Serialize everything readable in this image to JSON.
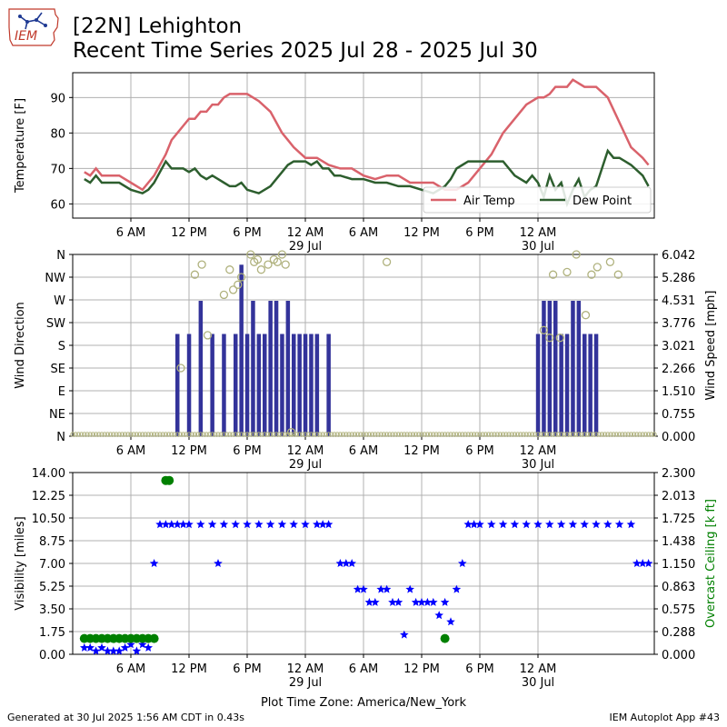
{
  "header": {
    "title_line1": "[22N] Lehighton",
    "title_line2": "Recent Time Series 2025 Jul 28 - 2025 Jul 30",
    "logo_text": "IEM"
  },
  "footer": {
    "left": "Generated at 30 Jul 2025 1:56 AM CDT in 0.43s",
    "right": "IEM Autoplot App #43"
  },
  "colors": {
    "temp": "#d9626b",
    "dew": "#2d5e2e",
    "bars": "#33339a",
    "wind_dir": "#b0b27e",
    "vis": "#0000ff",
    "ceiling": "#008000",
    "grid": "#b0b0b0"
  },
  "chart_data": [
    {
      "type": "line",
      "ylabel": "Temperature [F]",
      "xlabel": "",
      "ylim": [
        56,
        97
      ],
      "yticks": [
        "60",
        "70",
        "80",
        "90"
      ],
      "xticks": [
        "6 AM",
        "12 PM",
        "6 PM",
        "12 AM\n29 Jul",
        "6 AM",
        "12 PM",
        "6 PM",
        "12 AM\n30 Jul"
      ],
      "grid": true,
      "legend": "lower-right",
      "series": [
        {
          "name": "Air Temp",
          "x": [
            1.0,
            1.5,
            2.0,
            2.5,
            3.0,
            3.5,
            4.0,
            5.0,
            6.0,
            6.5,
            7.0,
            7.5,
            8.0,
            8.5,
            9.0,
            9.5,
            10.0,
            10.5,
            11.0,
            11.5,
            12.0,
            12.5,
            13.0,
            13.5,
            14.0,
            15.0,
            16.0,
            17.0,
            18.0,
            18.5,
            19.0,
            20.0,
            21.0,
            22.0,
            23.0,
            24.0,
            25.0,
            26.0,
            27.0,
            28.0,
            29.0,
            30.0,
            31.0,
            32.0,
            33.0,
            34.0,
            35.0,
            36.0,
            36.5,
            37.0,
            38.0,
            39.0,
            40.0,
            40.5,
            41.0,
            41.5,
            42.0,
            42.5,
            43.0,
            44.0,
            45.0,
            46.0,
            47.0,
            48.0,
            49.0,
            49.5
          ],
          "values": [
            69,
            68,
            70,
            68,
            68,
            68,
            68,
            66,
            64,
            66,
            68,
            71,
            74,
            78,
            80,
            82,
            84,
            84,
            86,
            86,
            88,
            88,
            90,
            91,
            91,
            91,
            89,
            86,
            80,
            78,
            76,
            73,
            73,
            71,
            70,
            70,
            68,
            67,
            68,
            68,
            66,
            66,
            66,
            64,
            64,
            66,
            70,
            74,
            77,
            80,
            84,
            88,
            90,
            90,
            91,
            93,
            93,
            93,
            95,
            93,
            93,
            90,
            83,
            76,
            73,
            71
          ]
        },
        {
          "name": "Dew Point",
          "x": [
            1.0,
            1.5,
            2.0,
            2.5,
            3.0,
            3.5,
            4.0,
            5.0,
            6.0,
            6.5,
            7.0,
            7.5,
            8.0,
            8.5,
            9.0,
            9.5,
            10.0,
            10.5,
            11.0,
            11.5,
            12.0,
            12.5,
            13.0,
            13.5,
            14.0,
            14.5,
            15.0,
            16.0,
            17.0,
            17.5,
            18.0,
            18.5,
            19.0,
            20.0,
            20.5,
            21.0,
            21.5,
            22.0,
            22.5,
            23.0,
            24.0,
            25.0,
            26.0,
            27.0,
            28.0,
            29.0,
            30.0,
            31.0,
            31.5,
            32.0,
            32.5,
            33.0,
            33.5,
            34.0,
            35.0,
            36.0,
            37.0,
            38.0,
            39.0,
            39.5,
            40.0,
            40.5,
            41.0,
            41.5,
            42.0,
            42.5,
            43.0,
            43.5,
            44.0,
            44.5,
            45.0,
            45.5,
            46.0,
            46.5,
            47.0,
            47.5,
            48.0,
            49.0,
            49.5
          ],
          "values": [
            67,
            66,
            68,
            66,
            66,
            66,
            66,
            64,
            63,
            64,
            66,
            69,
            72,
            70,
            70,
            70,
            69,
            70,
            68,
            67,
            68,
            67,
            66,
            65,
            65,
            66,
            64,
            63,
            65,
            67,
            69,
            71,
            72,
            72,
            71,
            72,
            70,
            70,
            68,
            68,
            67,
            67,
            66,
            66,
            65,
            65,
            64,
            63,
            64,
            65,
            67,
            70,
            71,
            72,
            72,
            72,
            72,
            68,
            66,
            68,
            66,
            62,
            68,
            64,
            66,
            60,
            64,
            67,
            62,
            64,
            65,
            70,
            75,
            73,
            73,
            72,
            71,
            68,
            65
          ]
        }
      ]
    },
    {
      "type": "bar",
      "ylabel": "Wind Direction",
      "y2label": "Wind Speed [mph]",
      "ylim": [
        0,
        6.042
      ],
      "yticks_left": [
        "N",
        "NE",
        "E",
        "SE",
        "S",
        "SW",
        "W",
        "NW",
        "N"
      ],
      "yticks_right": [
        "0.000",
        "0.755",
        "1.510",
        "2.266",
        "3.021",
        "3.776",
        "4.531",
        "5.286",
        "6.042"
      ],
      "xticks": [
        "6 AM",
        "12 PM",
        "6 PM",
        "12 AM\n29 Jul",
        "6 AM",
        "12 PM",
        "6 PM",
        "12 AM\n30 Jul"
      ],
      "grid": true,
      "series": [
        {
          "name": "Wind Speed",
          "x": [
            9.0,
            10.0,
            11.0,
            12.0,
            13.0,
            14.0,
            14.5,
            15.0,
            15.5,
            16.0,
            16.5,
            17.0,
            17.5,
            18.0,
            18.5,
            19.0,
            19.5,
            20.0,
            20.5,
            21.0,
            22.0,
            40.0,
            40.5,
            41.0,
            41.5,
            42.0,
            42.5,
            43.0,
            43.5,
            44.0,
            44.5,
            45.0
          ],
          "values": [
            3.4,
            3.4,
            4.5,
            3.4,
            3.4,
            3.4,
            5.7,
            3.4,
            4.5,
            3.4,
            3.4,
            4.5,
            4.5,
            3.4,
            4.5,
            3.4,
            3.4,
            3.4,
            3.4,
            3.4,
            3.4,
            3.4,
            4.5,
            4.5,
            4.5,
            3.4,
            3.4,
            4.5,
            4.5,
            3.4,
            3.4,
            3.4
          ]
        }
      ],
      "wind_direction_deg": [
        [
          9.3,
          135
        ],
        [
          10.5,
          320
        ],
        [
          11.1,
          340
        ],
        [
          11.6,
          200
        ],
        [
          13.0,
          280
        ],
        [
          13.5,
          330
        ],
        [
          13.8,
          290
        ],
        [
          14.2,
          300
        ],
        [
          14.5,
          315
        ],
        [
          15.3,
          360
        ],
        [
          15.6,
          345
        ],
        [
          15.9,
          350
        ],
        [
          16.2,
          330
        ],
        [
          16.8,
          340
        ],
        [
          17.3,
          350
        ],
        [
          17.6,
          345
        ],
        [
          18.0,
          360
        ],
        [
          18.3,
          340
        ],
        [
          18.8,
          8
        ],
        [
          27.0,
          345
        ],
        [
          40.5,
          210
        ],
        [
          41.0,
          195
        ],
        [
          41.3,
          320
        ],
        [
          41.9,
          195
        ],
        [
          42.5,
          325
        ],
        [
          43.3,
          360
        ],
        [
          44.1,
          240
        ],
        [
          44.6,
          320
        ],
        [
          45.1,
          335
        ],
        [
          46.2,
          345
        ],
        [
          46.9,
          320
        ]
      ]
    },
    {
      "type": "scatter",
      "ylabel": "Visibility [miles]",
      "y2label": "Overcast Ceiling [k ft]",
      "xlabel": "Plot Time Zone: America/New_York",
      "ylim": [
        0,
        14
      ],
      "yticks_left": [
        "0.00",
        "1.75",
        "3.50",
        "5.25",
        "7.00",
        "8.75",
        "10.50",
        "12.25",
        "14.00"
      ],
      "yticks_right": [
        "0.000",
        "0.288",
        "0.575",
        "0.863",
        "1.150",
        "1.438",
        "1.725",
        "2.013",
        "2.300"
      ],
      "xticks": [
        "6 AM",
        "12 PM",
        "6 PM",
        "12 AM\n29 Jul",
        "6 AM",
        "12 PM",
        "6 PM",
        "12 AM\n30 Jul"
      ],
      "grid": true,
      "series": [
        {
          "name": "Visibility",
          "marker": "star",
          "x": [
            1.0,
            1.5,
            2.0,
            2.5,
            3.0,
            3.5,
            4.0,
            4.5,
            5.0,
            5.5,
            6.0,
            6.5,
            7.0,
            7.5,
            8.0,
            8.5,
            9.0,
            9.5,
            10.0,
            11.0,
            12.0,
            12.5,
            13.0,
            14.0,
            15.0,
            16.0,
            17.0,
            18.0,
            19.0,
            20.0,
            21.0,
            21.5,
            22.0,
            23.0,
            23.5,
            24.0,
            24.5,
            25.0,
            25.5,
            26.0,
            26.5,
            27.0,
            27.5,
            28.0,
            28.5,
            29.0,
            29.5,
            30.0,
            30.5,
            31.0,
            31.5,
            32.0,
            32.5,
            33.0,
            33.5,
            34.0,
            34.5,
            35.0,
            36.0,
            37.0,
            38.0,
            39.0,
            40.0,
            41.0,
            42.0,
            43.0,
            44.0,
            45.0,
            46.0,
            47.0,
            48.0,
            48.5,
            49.0,
            49.5
          ],
          "values": [
            0.5,
            0.5,
            0.25,
            0.5,
            0.25,
            0.25,
            0.25,
            0.5,
            0.75,
            0.25,
            0.75,
            0.5,
            7.0,
            10.0,
            10.0,
            10.0,
            10.0,
            10.0,
            10.0,
            10.0,
            10.0,
            7.0,
            10.0,
            10.0,
            10.0,
            10.0,
            10.0,
            10.0,
            10.0,
            10.0,
            10.0,
            10.0,
            10.0,
            7.0,
            7.0,
            7.0,
            5.0,
            5.0,
            4.0,
            4.0,
            5.0,
            5.0,
            4.0,
            4.0,
            1.5,
            5.0,
            4.0,
            4.0,
            4.0,
            4.0,
            3.0,
            4.0,
            2.5,
            5.0,
            7.0,
            10.0,
            10.0,
            10.0,
            10.0,
            10.0,
            10.0,
            10.0,
            10.0,
            10.0,
            10.0,
            10.0,
            10.0,
            10.0,
            10.0,
            10.0,
            10.0,
            7.0,
            7.0,
            7.0
          ]
        },
        {
          "name": "Overcast Ceiling",
          "marker": "circle",
          "x": [
            1.0,
            1.5,
            2.0,
            2.5,
            3.0,
            3.5,
            4.0,
            4.5,
            5.0,
            5.5,
            6.0,
            6.5,
            7.0,
            8.0,
            8.3,
            32.0
          ],
          "values": [
            0.2,
            0.2,
            0.2,
            0.2,
            0.2,
            0.2,
            0.2,
            0.2,
            0.2,
            0.2,
            0.2,
            0.2,
            0.2,
            2.2,
            2.2,
            0.2
          ]
        }
      ]
    }
  ]
}
